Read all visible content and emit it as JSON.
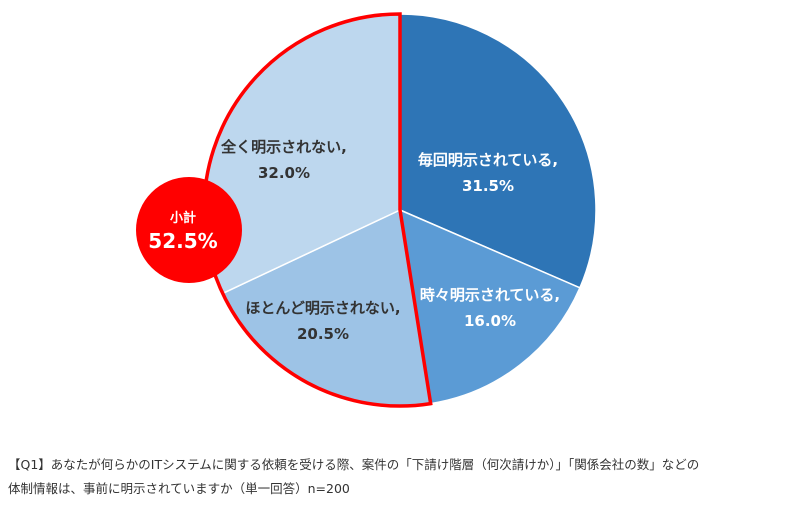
{
  "chart_data": {
    "type": "pie",
    "slices": [
      {
        "label": "毎回明示されている,",
        "value": 31.5,
        "value_label": "31.5%",
        "color": "#2e75b6",
        "text_color": "#ffffff"
      },
      {
        "label": "時々明示されている,",
        "value": 16.0,
        "value_label": "16.0%",
        "color": "#5b9bd5",
        "text_color": "#ffffff"
      },
      {
        "label": "ほとんど明示されない,",
        "value": 20.5,
        "value_label": "20.5%",
        "color": "#9dc3e6",
        "text_color": "#333333"
      },
      {
        "label": "全く明示されない,",
        "value": 32.0,
        "value_label": "32.0%",
        "color": "#bdd7ee",
        "text_color": "#333333"
      }
    ],
    "highlight": {
      "slices": [
        "ほとんど明示されない,",
        "全く明示されない,"
      ],
      "outline_color": "#ff0000",
      "badge_title": "小計",
      "badge_value": "52.5%"
    },
    "start_angle": "12 o'clock",
    "direction": "clockwise"
  },
  "caption": {
    "line1": "【Q1】あなたが何らかのITシステムに関する依頼を受ける際、案件の「下請け階層（何次請けか）」「関係会社の数」などの",
    "line2": "体制情報は、事前に明示されていますか（単一回答）n=200"
  }
}
